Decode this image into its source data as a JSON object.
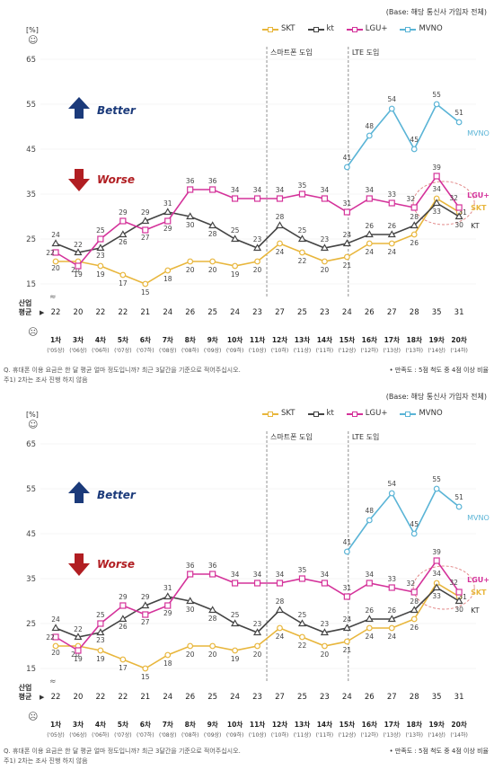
{
  "base_note": "(Base: 해당 통신사 가입자 전체)",
  "legend": [
    "SKT",
    "kt",
    "LGU+",
    "MVNO"
  ],
  "colors": {
    "SKT": "#e8b63c",
    "kt": "#444444",
    "LGU+": "#d4329a",
    "MVNO": "#5ab4d6",
    "better": "#1b3a7a",
    "worse": "#b11e22"
  },
  "y_unit_label": "[%]",
  "better_label": "Better",
  "worse_label": "Worse",
  "smartphone_label": "스마트폰 도입",
  "lte_label": "LTE 도입",
  "industry_avg_label": [
    "산업",
    "평균"
  ],
  "industry_avg": [
    "22",
    "20",
    "22",
    "22",
    "21",
    "24",
    "26",
    "25",
    "24",
    "23",
    "27",
    "25",
    "23",
    "24",
    "26",
    "27",
    "28",
    "35",
    "31"
  ],
  "footnote_q": "Q. 휴대폰 이용 요금은 한 달 평균 얼마 정도입니까? 최근 3달간을 기준으로 적어주십시오.",
  "footnote_1": "주1) 2차는 조사 진행 하지 않음",
  "footnote_right": "• 만족도 : 5점 척도 중 4점 이상 비율",
  "chart_data": {
    "type": "line",
    "ylabel": "[%]",
    "ylim": [
      15,
      65
    ],
    "yticks": [
      15,
      25,
      35,
      45,
      55,
      65
    ],
    "categories": [
      "1차",
      "3차",
      "4차",
      "5차",
      "6차",
      "7차",
      "8차",
      "9차",
      "10차",
      "11차",
      "12차",
      "13차",
      "14차",
      "15차",
      "16차",
      "17차",
      "18차",
      "19차",
      "20차"
    ],
    "subcategories": [
      "('05상)",
      "('06상)",
      "('06하)",
      "('07상)",
      "('07하)",
      "('08상)",
      "('08하)",
      "('09상)",
      "('09하)",
      "('10상)",
      "('10하)",
      "('11상)",
      "('11하)",
      "('12상)",
      "('12하)",
      "('13상)",
      "('13하)",
      "('14상)",
      "('14하)"
    ],
    "series": [
      {
        "name": "SKT",
        "values": [
          20,
          20,
          19,
          17,
          15,
          18,
          20,
          20,
          19,
          20,
          24,
          22,
          20,
          21,
          24,
          24,
          26,
          34,
          31
        ]
      },
      {
        "name": "kt",
        "values": [
          24,
          22,
          23,
          26,
          29,
          31,
          30,
          28,
          25,
          23,
          28,
          25,
          23,
          24,
          26,
          26,
          28,
          33,
          30
        ]
      },
      {
        "name": "LGU+",
        "values": [
          22,
          19,
          25,
          29,
          27,
          29,
          36,
          36,
          34,
          34,
          34,
          35,
          34,
          31,
          34,
          33,
          32,
          39,
          32
        ]
      },
      {
        "name": "MVNO",
        "values": [
          null,
          null,
          null,
          null,
          null,
          null,
          null,
          null,
          null,
          null,
          null,
          null,
          null,
          41,
          48,
          54,
          45,
          55,
          51
        ]
      }
    ],
    "end_labels": [
      "LGU+",
      "SKT",
      "KT",
      "MVNO"
    ]
  }
}
